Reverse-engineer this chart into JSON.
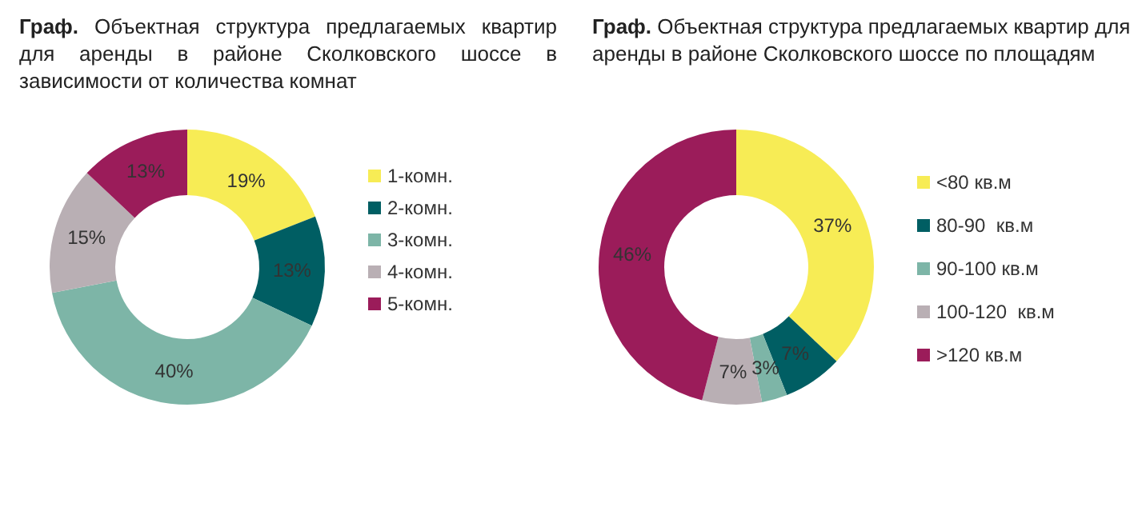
{
  "chart_data": [
    {
      "type": "donut",
      "title": "Граф. Объектная структура предлагаемых квартир для аренды в районе Сколковского шоссе в зависимости от количества комнат",
      "categories": [
        "1-комн.",
        "2-комн.",
        "3-комн.",
        "4-комн.",
        "5-комн."
      ],
      "values": [
        19,
        13,
        40,
        15,
        13
      ],
      "value_labels": [
        "19%",
        "13%",
        "40%",
        "15%",
        "13%"
      ],
      "colors": [
        "#f7ec55",
        "#005e63",
        "#7db5a7",
        "#b9afb4",
        "#9b1c5a"
      ],
      "legend": "right"
    },
    {
      "type": "donut",
      "title": "Граф. Объектная структура предлагаемых квартир для аренды в районе Сколковского шоссе по площадям",
      "categories": [
        "<80 кв.м",
        "80-90  кв.м",
        "90-100 кв.м",
        "100-120  кв.м",
        ">120 кв.м"
      ],
      "values": [
        37,
        7,
        3,
        7,
        46
      ],
      "value_labels": [
        "37%",
        "7%",
        "3%",
        "7%",
        "46%"
      ],
      "colors": [
        "#f7ec55",
        "#005e63",
        "#7db5a7",
        "#b9afb4",
        "#9b1c5a"
      ],
      "legend": "right"
    }
  ]
}
